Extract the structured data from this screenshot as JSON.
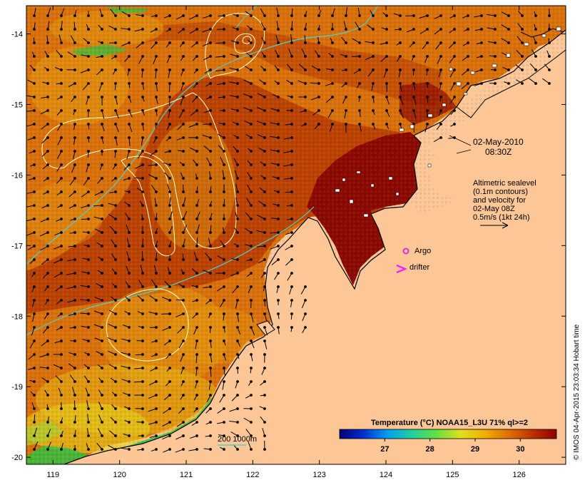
{
  "map": {
    "lon_range": [
      118.6,
      126.7
    ],
    "lat_range": [
      -20.1,
      -13.6
    ],
    "lon_ticks": [
      119,
      120,
      121,
      122,
      123,
      124,
      125,
      126
    ],
    "lat_ticks": [
      -14,
      -15,
      -16,
      -17,
      -18,
      -19,
      -20
    ],
    "colors": {
      "land": "#fcc697",
      "sst_warm": "#8b0a00",
      "sst_mid": "#b53a00",
      "sst_orange": "#d9700a",
      "sst_cool": "#e69c10",
      "sst_yellow": "#e6d21a",
      "sst_green": "#30c040",
      "contour": "#ffffcc",
      "depth_contour": "#4fd1c5",
      "argo": "#e020e0",
      "drifter": "#ff20ff"
    }
  },
  "annotations": {
    "date_line1": "02-May-2010",
    "date_line2": "08:30Z",
    "legend_line1": "Altimetric sealevel",
    "legend_line2": "(0.1m contours)",
    "legend_line3": "and velocity for",
    "legend_line4": "02-May 08Z",
    "legend_line5": "0.5m/s (1kt 24h)",
    "argo_label": "Argo",
    "drifter_label": "drifter",
    "depth_label": "200  1000m",
    "credit": "© IMOS 04-Apr-2015 23:03:34 Hobart time"
  },
  "colorbar": {
    "title": "Temperature (°C) NOAA15_L3U 71% ql>=2",
    "ticks": [
      "27",
      "28",
      "29",
      "30"
    ],
    "tick_values": [
      27,
      28,
      29,
      30
    ],
    "range": [
      26.0,
      30.8
    ],
    "stops": [
      "#00007a",
      "#0030d0",
      "#00a0f0",
      "#20d0a0",
      "#60e040",
      "#e0e020",
      "#f0b000",
      "#e07000",
      "#c03000",
      "#900000"
    ]
  }
}
